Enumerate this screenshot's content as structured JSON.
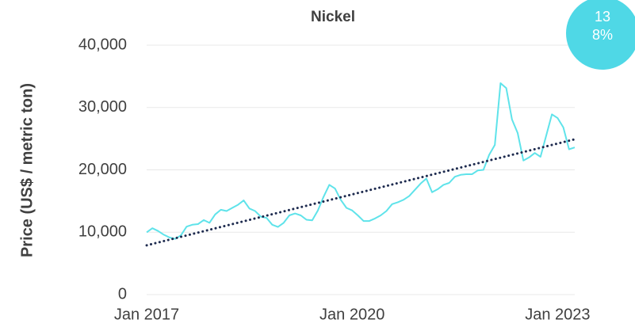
{
  "chart_data": {
    "type": "line",
    "title": "Nickel",
    "y_label": "Price (US$ / metric ton)",
    "annotation": "138%",
    "x": [
      "2017-01",
      "2017-02",
      "2017-03",
      "2017-04",
      "2017-05",
      "2017-06",
      "2017-07",
      "2017-08",
      "2017-09",
      "2017-10",
      "2017-11",
      "2017-12",
      "2018-01",
      "2018-02",
      "2018-03",
      "2018-04",
      "2018-05",
      "2018-06",
      "2018-07",
      "2018-08",
      "2018-09",
      "2018-10",
      "2018-11",
      "2018-12",
      "2019-01",
      "2019-02",
      "2019-03",
      "2019-04",
      "2019-05",
      "2019-06",
      "2019-07",
      "2019-08",
      "2019-09",
      "2019-10",
      "2019-11",
      "2019-12",
      "2020-01",
      "2020-02",
      "2020-03",
      "2020-04",
      "2020-05",
      "2020-06",
      "2020-07",
      "2020-08",
      "2020-09",
      "2020-10",
      "2020-11",
      "2020-12",
      "2021-01",
      "2021-02",
      "2021-03",
      "2021-04",
      "2021-05",
      "2021-06",
      "2021-07",
      "2021-08",
      "2021-09",
      "2021-10",
      "2021-11",
      "2021-12",
      "2022-01",
      "2022-02",
      "2022-03",
      "2022-04",
      "2022-05",
      "2022-06",
      "2022-07",
      "2022-08",
      "2022-09",
      "2022-10",
      "2022-11",
      "2022-12",
      "2023-01",
      "2023-02",
      "2023-03",
      "2023-04"
    ],
    "series": [
      {
        "color": "#5fe3ea",
        "values": [
          9980,
          10640,
          10200,
          9600,
          9150,
          8930,
          9500,
          10900,
          11200,
          11300,
          11950,
          11500,
          12850,
          13600,
          13400,
          13900,
          14400,
          15100,
          13800,
          13400,
          12500,
          12300,
          11200,
          10850,
          11500,
          12700,
          13000,
          12700,
          12000,
          11900,
          13500,
          15700,
          17600,
          17000,
          15200,
          13900,
          13500,
          12700,
          11800,
          11800,
          12200,
          12700,
          13400,
          14500,
          14800,
          15200,
          15800,
          16800,
          17800,
          18600,
          16400,
          16900,
          17600,
          17900,
          18900,
          19200,
          19300,
          19300,
          19900,
          20000,
          22400,
          24000,
          33900,
          33100,
          28100,
          25900,
          21500,
          22000,
          22700,
          22100,
          25500,
          28900,
          28300,
          26800,
          23300,
          23600
        ]
      }
    ],
    "trendline": {
      "x": [
        "2017-01",
        "2023-04"
      ],
      "values": [
        7900,
        24900
      ],
      "color": "#1e2b4f"
    },
    "xlim": [
      "2017-01",
      "2023-04"
    ],
    "xticks": [
      {
        "value": "2017-01",
        "label": "Jan 2017"
      },
      {
        "value": "2020-01",
        "label": "Jan 2020"
      },
      {
        "value": "2023-01",
        "label": "Jan 2023"
      }
    ],
    "ylim": [
      0,
      40000
    ],
    "yticks": [
      0,
      {
        "value": 10000,
        "label": "10,000"
      },
      {
        "value": 20000,
        "label": "20,000"
      },
      {
        "value": 30000,
        "label": "30,000"
      },
      {
        "value": 40000,
        "label": "40,000"
      }
    ],
    "grid": true,
    "badge_color": "#4fd8e6"
  }
}
